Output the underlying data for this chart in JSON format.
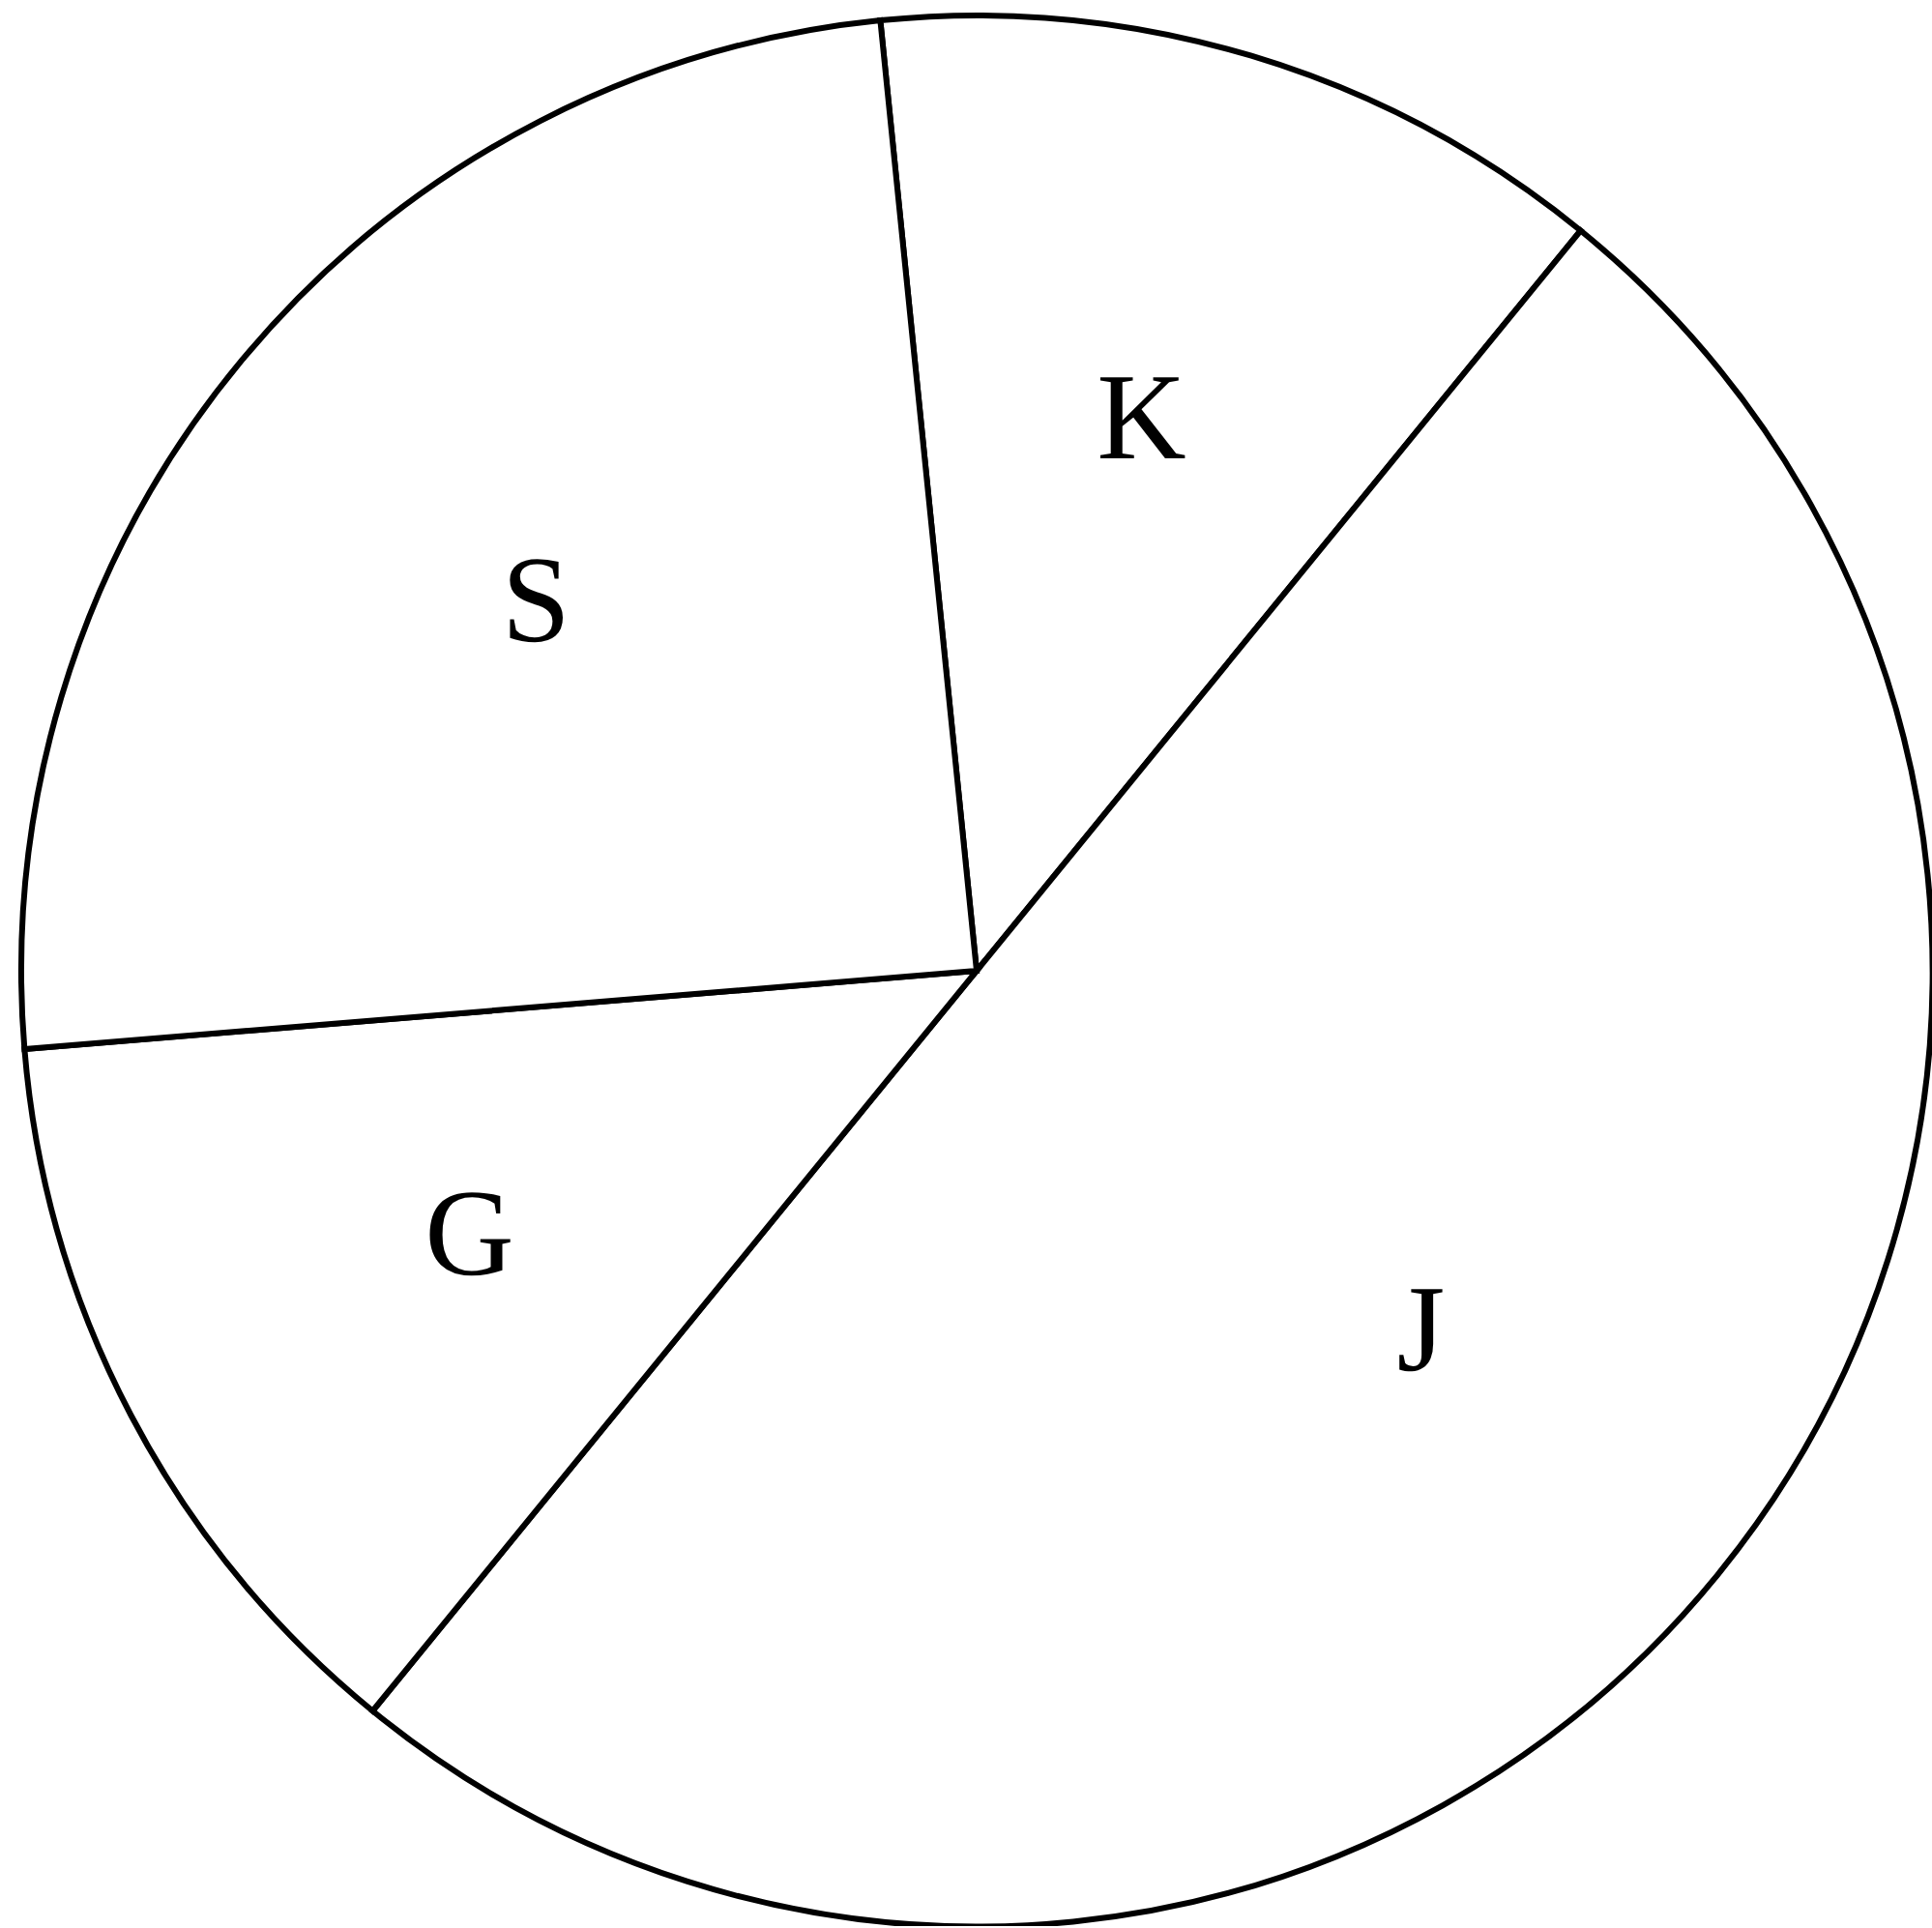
{
  "chart_data": {
    "type": "pie",
    "categories": [
      "K",
      "J",
      "G",
      "S"
    ],
    "values": [
      12.5,
      50,
      12.8,
      24.7
    ],
    "colors": [
      "#ffffff",
      "#ffffff",
      "#ffffff",
      "#ffffff"
    ]
  }
}
